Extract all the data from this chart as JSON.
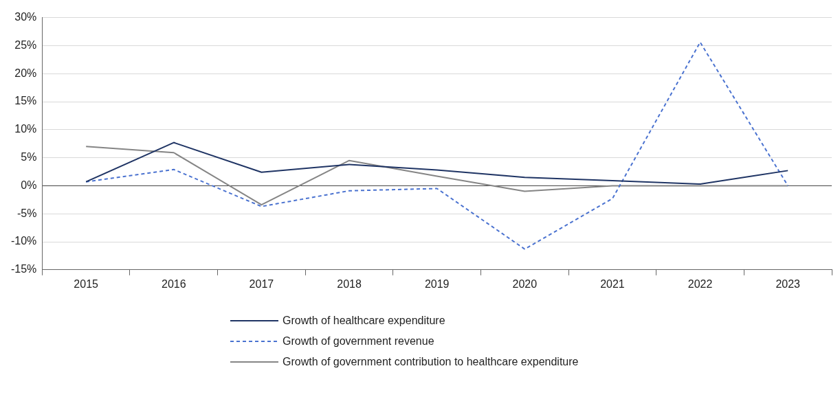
{
  "chart_data": {
    "type": "line",
    "categories": [
      "2015",
      "2016",
      "2017",
      "2018",
      "2019",
      "2020",
      "2021",
      "2022",
      "2023"
    ],
    "series": [
      {
        "name": "Growth of healthcare expenditure",
        "color": "#1f3464",
        "line_style": "solid",
        "values": [
          0.7,
          7.7,
          2.4,
          3.8,
          2.8,
          1.5,
          0.9,
          0.3,
          2.7
        ]
      },
      {
        "name": "Growth of government revenue",
        "color": "#4a72d0",
        "line_style": "dashed",
        "values": [
          0.7,
          2.9,
          -3.7,
          -0.9,
          -0.5,
          -11.3,
          -2.3,
          25.6,
          0
        ]
      },
      {
        "name": "Growth of government contribution to healthcare expenditure",
        "color": "#858585",
        "line_style": "solid",
        "values": [
          7.0,
          5.9,
          -3.4,
          4.5,
          1.7,
          -1.0,
          0,
          0,
          0
        ]
      }
    ],
    "ylim": [
      -15,
      30
    ],
    "yticks": [
      {
        "value": -15,
        "label": "-15%"
      },
      {
        "value": -10,
        "label": "-10%"
      },
      {
        "value": -5,
        "label": "-5%"
      },
      {
        "value": 0,
        "label": "0%"
      },
      {
        "value": 5,
        "label": "5%"
      },
      {
        "value": 10,
        "label": "10%"
      },
      {
        "value": 15,
        "label": "15%"
      },
      {
        "value": 20,
        "label": "20%"
      },
      {
        "value": 25,
        "label": "25%"
      },
      {
        "value": 30,
        "label": "30%"
      }
    ],
    "grid": "y",
    "legend": "bottom",
    "marker": "none"
  }
}
